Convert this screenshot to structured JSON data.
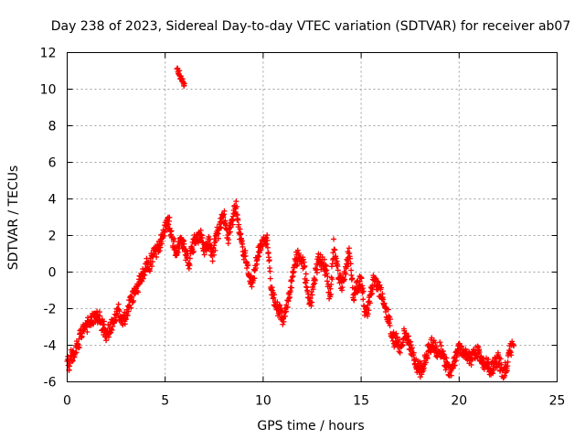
{
  "chart_data": {
    "type": "scatter",
    "title": "Day 238 of 2023, Sidereal Day-to-day VTEC variation (SDTVAR) for receiver ab07",
    "xlabel": "GPS time / hours",
    "ylabel": "SDTVAR / TECUs",
    "xlim": [
      0,
      25
    ],
    "ylim": [
      -6,
      12
    ],
    "xticks": [
      0,
      5,
      10,
      15,
      20,
      25
    ],
    "yticks": [
      -6,
      -4,
      -2,
      0,
      2,
      4,
      6,
      8,
      10,
      12
    ],
    "grid": true,
    "marker": "+",
    "series": [
      {
        "name": "SDTVAR",
        "color": "#ff0000",
        "trace": [
          [
            0.0,
            -4.6
          ],
          [
            0.1,
            -5.2
          ],
          [
            0.2,
            -4.4
          ],
          [
            0.3,
            -4.7
          ],
          [
            0.5,
            -4.0
          ],
          [
            0.7,
            -3.4
          ],
          [
            0.9,
            -3.0
          ],
          [
            1.1,
            -2.8
          ],
          [
            1.3,
            -2.6
          ],
          [
            1.5,
            -2.5
          ],
          [
            1.6,
            -2.4
          ],
          [
            1.8,
            -3.0
          ],
          [
            2.0,
            -3.4
          ],
          [
            2.2,
            -3.0
          ],
          [
            2.4,
            -2.5
          ],
          [
            2.6,
            -2.2
          ],
          [
            2.8,
            -2.8
          ],
          [
            3.0,
            -2.4
          ],
          [
            3.2,
            -1.6
          ],
          [
            3.4,
            -1.2
          ],
          [
            3.6,
            -0.8
          ],
          [
            3.8,
            -0.2
          ],
          [
            4.0,
            0.3
          ],
          [
            4.2,
            0.4
          ],
          [
            4.4,
            1.0
          ],
          [
            4.6,
            1.3
          ],
          [
            4.8,
            1.9
          ],
          [
            5.0,
            2.6
          ],
          [
            5.2,
            2.6
          ],
          [
            5.4,
            1.5
          ],
          [
            5.6,
            1.0
          ],
          [
            5.8,
            1.8
          ],
          [
            6.0,
            1.2
          ],
          [
            6.2,
            0.4
          ],
          [
            6.4,
            1.5
          ],
          [
            6.6,
            1.8
          ],
          [
            6.8,
            2.0
          ],
          [
            7.0,
            1.2
          ],
          [
            7.2,
            1.6
          ],
          [
            7.4,
            0.9
          ],
          [
            7.6,
            1.9
          ],
          [
            7.8,
            2.6
          ],
          [
            8.0,
            3.2
          ],
          [
            8.2,
            1.8
          ],
          [
            8.4,
            2.9
          ],
          [
            8.6,
            3.6
          ],
          [
            8.8,
            2.0
          ],
          [
            9.0,
            1.1
          ],
          [
            9.2,
            0.3
          ],
          [
            9.4,
            -0.8
          ],
          [
            9.6,
            0.4
          ],
          [
            9.8,
            1.3
          ],
          [
            10.0,
            1.6
          ],
          [
            10.2,
            1.9
          ],
          [
            10.4,
            -1.0
          ],
          [
            10.6,
            -1.6
          ],
          [
            10.8,
            -2.2
          ],
          [
            11.0,
            -2.6
          ],
          [
            11.2,
            -1.9
          ],
          [
            11.4,
            -0.8
          ],
          [
            11.6,
            0.5
          ],
          [
            11.8,
            1.0
          ],
          [
            12.0,
            0.6
          ],
          [
            12.2,
            -0.6
          ],
          [
            12.4,
            -1.7
          ],
          [
            12.6,
            -0.4
          ],
          [
            12.8,
            0.8
          ],
          [
            13.0,
            0.4
          ],
          [
            13.2,
            0.2
          ],
          [
            13.4,
            -1.5
          ],
          [
            13.6,
            1.6
          ],
          [
            13.8,
            0.1
          ],
          [
            14.0,
            -0.8
          ],
          [
            14.2,
            0.3
          ],
          [
            14.4,
            1.2
          ],
          [
            14.6,
            -1.4
          ],
          [
            14.8,
            -0.7
          ],
          [
            15.0,
            -0.4
          ],
          [
            15.2,
            -2.4
          ],
          [
            15.4,
            -1.6
          ],
          [
            15.6,
            -0.5
          ],
          [
            15.8,
            -0.6
          ],
          [
            16.0,
            -1.2
          ],
          [
            16.2,
            -1.8
          ],
          [
            16.4,
            -2.6
          ],
          [
            16.6,
            -3.6
          ],
          [
            16.8,
            -3.8
          ],
          [
            17.0,
            -4.2
          ],
          [
            17.2,
            -3.4
          ],
          [
            17.4,
            -3.8
          ],
          [
            17.6,
            -4.4
          ],
          [
            17.8,
            -5.0
          ],
          [
            18.0,
            -5.4
          ],
          [
            18.2,
            -5.1
          ],
          [
            18.4,
            -4.3
          ],
          [
            18.6,
            -3.8
          ],
          [
            18.8,
            -4.4
          ],
          [
            19.0,
            -4.1
          ],
          [
            19.2,
            -4.8
          ],
          [
            19.4,
            -5.2
          ],
          [
            19.6,
            -5.6
          ],
          [
            19.8,
            -4.7
          ],
          [
            20.0,
            -4.0
          ],
          [
            20.2,
            -4.6
          ],
          [
            20.4,
            -4.4
          ],
          [
            20.6,
            -4.8
          ],
          [
            20.8,
            -4.3
          ],
          [
            21.0,
            -4.5
          ],
          [
            21.2,
            -4.8
          ],
          [
            21.6,
            -5.3
          ],
          [
            22.0,
            -4.8
          ],
          [
            22.2,
            -5.4
          ],
          [
            22.4,
            -5.2
          ],
          [
            22.6,
            -4.2
          ],
          [
            22.8,
            -3.7
          ]
        ],
        "outlier_segment": [
          [
            5.6,
            11.1
          ],
          [
            5.7,
            10.9
          ],
          [
            5.8,
            10.6
          ],
          [
            5.9,
            10.4
          ],
          [
            6.0,
            10.2
          ]
        ]
      }
    ]
  }
}
